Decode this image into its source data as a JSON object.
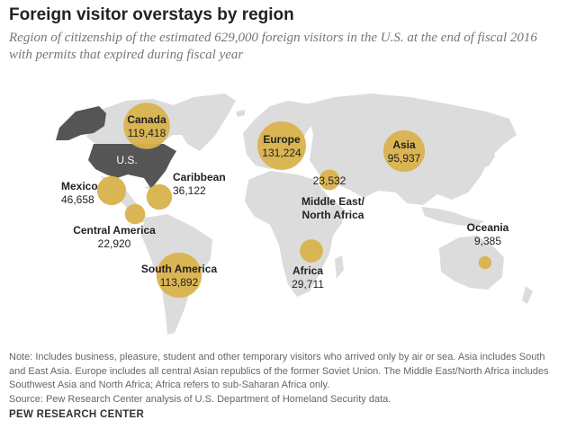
{
  "header": {
    "title": "Foreign visitor overstays by region",
    "subtitle_line1": "Region of citizenship of the estimated 629,000 foreign visitors in the U.S. at the end of fiscal 2016",
    "subtitle_line2": "with permits that expired during fiscal year"
  },
  "map": {
    "us_label": "U.S.",
    "colors": {
      "land": "#dcdcdc",
      "us": "#555555",
      "alaska": "#555555",
      "bubble": "#d9b24b"
    }
  },
  "chart_data": {
    "type": "bubble-map",
    "title": "Foreign visitor overstays by region",
    "series": [
      {
        "name": "Canada",
        "value": 119418,
        "value_label": "119,418"
      },
      {
        "name": "Europe",
        "value": 131224,
        "value_label": "131,224"
      },
      {
        "name": "Asia",
        "value": 95937,
        "value_label": "95,937"
      },
      {
        "name": "Mexico",
        "value": 46658,
        "value_label": "46,658"
      },
      {
        "name": "Caribbean",
        "value": 36122,
        "value_label": "36,122"
      },
      {
        "name": "Central America",
        "value": 22920,
        "value_label": "22,920"
      },
      {
        "name": "South America",
        "value": 113892,
        "value_label": "113,892"
      },
      {
        "name": "Middle East/ North Africa",
        "name_line1": "Middle East/",
        "name_line2": "North Africa",
        "value": 23532,
        "value_label": "23,532"
      },
      {
        "name": "Africa",
        "value": 29711,
        "value_label": "29,711"
      },
      {
        "name": "Oceania",
        "value": 9385,
        "value_label": "9,385"
      }
    ]
  },
  "notes": {
    "line1": "Note: Includes business, pleasure, student and other temporary visitors who arrived only by air or sea. Asia includes South",
    "line2": "and East Asia. Europe includes all central Asian republics of the former Soviet Union. The Middle East/North Africa includes",
    "line3": "Southwest Asia and North Africa; Africa refers to sub-Saharan Africa only.",
    "source": "Source: Pew Research Center analysis of U.S. Department of Homeland Security data."
  },
  "footer": {
    "brand": "PEW RESEARCH CENTER"
  }
}
